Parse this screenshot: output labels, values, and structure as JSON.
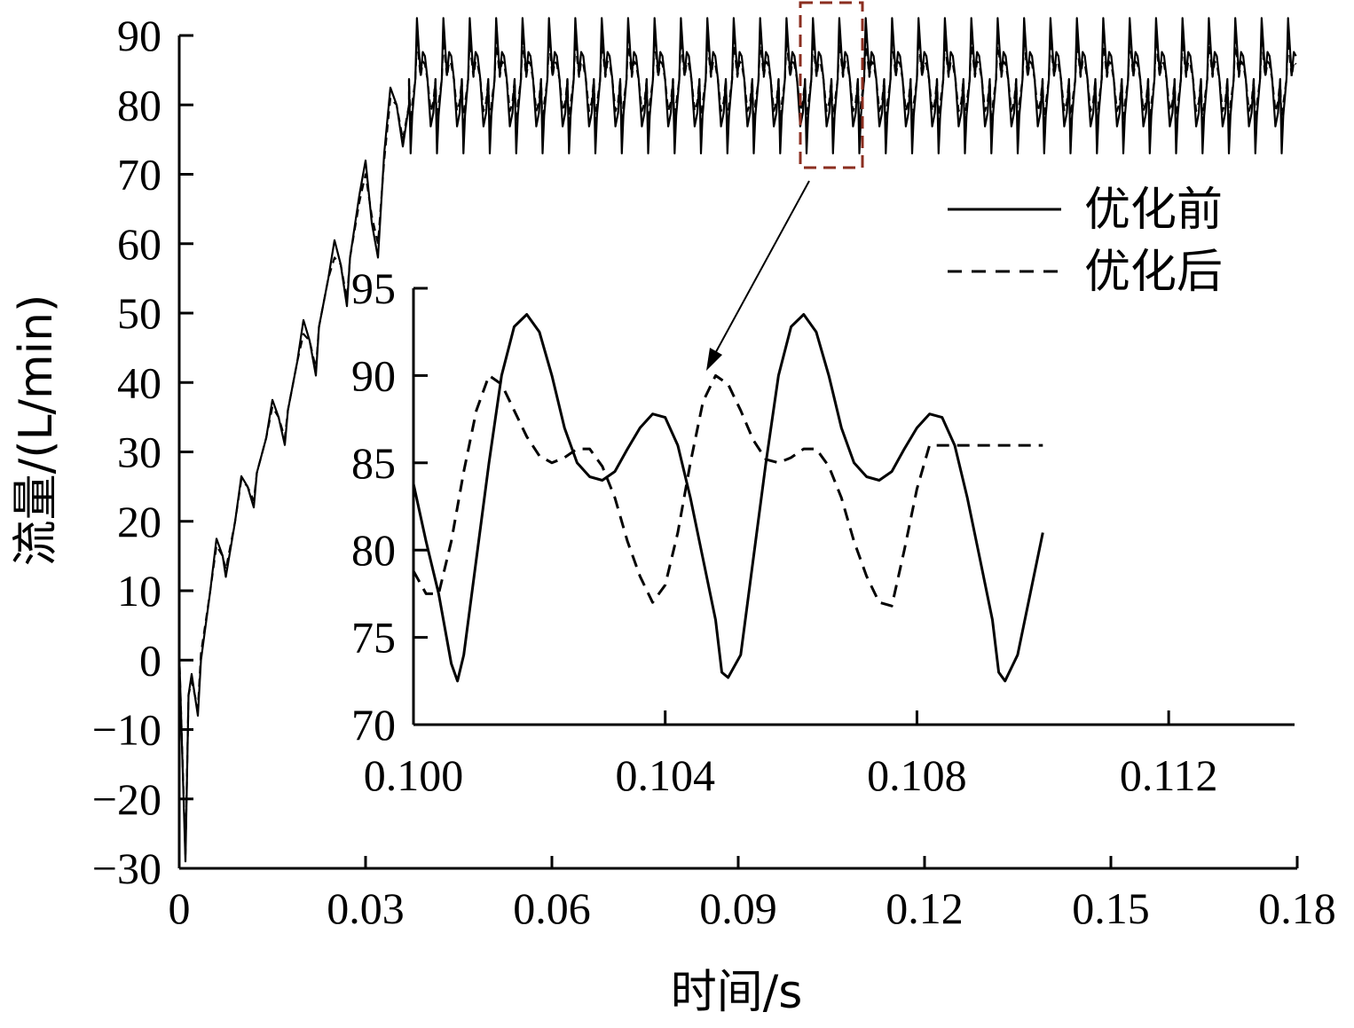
{
  "chart_data": [
    {
      "type": "line",
      "role": "main",
      "xlabel": "时间/s",
      "ylabel": "流量/(L/min)",
      "xlim": [
        0,
        0.18
      ],
      "ylim": [
        -30,
        90
      ],
      "x_ticks": [
        "0",
        "0.03",
        "0.06",
        "0.09",
        "0.12",
        "0.15",
        "0.18"
      ],
      "y_ticks": [
        "90",
        "80",
        "70",
        "60",
        "50",
        "40",
        "30",
        "20",
        "10",
        "0",
        "−10",
        "−20",
        "−30"
      ],
      "x_tick_values": [
        0,
        0.03,
        0.06,
        0.09,
        0.12,
        0.15,
        0.18
      ],
      "y_tick_values": [
        90,
        80,
        70,
        60,
        50,
        40,
        30,
        20,
        10,
        0,
        -10,
        -20,
        -30
      ],
      "grid": false,
      "series": [
        {
          "name": "优化前",
          "style": "solid",
          "color": "#000000",
          "x": [
            0,
            0.001,
            0.0015,
            0.002,
            0.003,
            0.0035,
            0.005,
            0.006,
            0.007,
            0.0075,
            0.009,
            0.01,
            0.011,
            0.012,
            0.0125,
            0.014,
            0.015,
            0.016,
            0.017,
            0.0175,
            0.019,
            0.02,
            0.021,
            0.022,
            0.0225,
            0.024,
            0.025,
            0.026,
            0.027,
            0.0275,
            0.029,
            0.03,
            0.031,
            0.032,
            0.033,
            0.034,
            0.035,
            0.036,
            0.037
          ],
          "values": [
            1,
            -29,
            -5,
            -2,
            -8,
            0,
            10,
            17.5,
            15,
            12,
            20,
            26.5,
            25,
            22,
            27,
            32,
            37.5,
            35,
            31,
            36,
            43,
            49,
            46,
            41,
            48,
            55,
            60.5,
            57,
            51,
            58,
            67,
            72,
            63,
            58,
            73,
            82.5,
            80,
            74,
            80
          ]
        },
        {
          "name": "优化后",
          "style": "dashed",
          "color": "#000000",
          "x": [
            0,
            0.001,
            0.0015,
            0.002,
            0.003,
            0.0035,
            0.005,
            0.006,
            0.007,
            0.0075,
            0.009,
            0.01,
            0.011,
            0.012,
            0.0125,
            0.014,
            0.015,
            0.016,
            0.017,
            0.0175,
            0.019,
            0.02,
            0.021,
            0.022,
            0.0225,
            0.024,
            0.025,
            0.026,
            0.027,
            0.0275,
            0.029,
            0.03,
            0.031,
            0.032,
            0.033,
            0.034,
            0.035,
            0.036,
            0.037
          ],
          "values": [
            1,
            -28,
            -5,
            -3,
            -7,
            1,
            10,
            16.5,
            15,
            13,
            20,
            26,
            25,
            23,
            27,
            32,
            36.5,
            35,
            32,
            36,
            43,
            47,
            46,
            42,
            48,
            55,
            58,
            57,
            52,
            58,
            66,
            70,
            64,
            60,
            72,
            81,
            80,
            75,
            80
          ]
        }
      ],
      "steady_state": {
        "from_x": 0.037,
        "to_x": 0.18,
        "period": 0.00425,
        "before": {
          "peak": 92.5,
          "secondary_peak": 86,
          "trough": 73
        },
        "after": {
          "peak": 89.5,
          "secondary_peak": 85.5,
          "trough": 76.5
        }
      },
      "legend": {
        "entries": [
          {
            "label": "优化前",
            "style": "solid"
          },
          {
            "label": "优化后",
            "style": "dashed"
          }
        ],
        "placement": "top-right"
      },
      "zoom_box": {
        "x_range": [
          0.1,
          0.11
        ],
        "color": "#8b2e1f"
      }
    },
    {
      "type": "line",
      "role": "inset",
      "xlim": [
        0.1,
        0.114
      ],
      "ylim": [
        70,
        95
      ],
      "x_ticks": [
        "0.100",
        "0.104",
        "0.108",
        "0.112"
      ],
      "y_ticks": [
        "95",
        "90",
        "85",
        "80",
        "75",
        "70"
      ],
      "x_tick_values": [
        0.1,
        0.104,
        0.108,
        0.112
      ],
      "y_tick_values": [
        95,
        90,
        85,
        80,
        75,
        70
      ],
      "series": [
        {
          "name": "优化前",
          "style": "solid",
          "x": [
            0.1,
            0.1002,
            0.1004,
            0.1006,
            0.1007,
            0.1008,
            0.101,
            0.1012,
            0.1014,
            0.1016,
            0.1018,
            0.102,
            0.1022,
            0.1024,
            0.1026,
            0.1028,
            0.103,
            0.1032,
            0.1034,
            0.1036,
            0.1038,
            0.104,
            0.1042,
            0.1044,
            0.1046,
            0.1048,
            0.1049,
            0.105,
            0.1052,
            0.1054,
            0.1056,
            0.1058,
            0.106,
            0.1062,
            0.1064,
            0.1066,
            0.1068,
            0.107,
            0.1072,
            0.1074,
            0.1076,
            0.1078,
            0.108,
            0.1082,
            0.1084,
            0.1086,
            0.1088,
            0.109,
            0.1092,
            0.1093,
            0.1094,
            0.1096,
            0.1098,
            0.11
          ],
          "values": [
            83.8,
            80.5,
            77.5,
            73.5,
            72.5,
            74,
            79.5,
            85,
            90,
            92.8,
            93.5,
            92.5,
            90,
            87,
            85,
            84.2,
            84,
            84.5,
            85.8,
            87,
            87.8,
            87.6,
            86,
            83,
            79.5,
            76,
            73,
            72.7,
            74,
            79.5,
            85,
            90,
            92.8,
            93.5,
            92.5,
            90,
            87,
            85,
            84.2,
            84,
            84.5,
            85.8,
            87,
            87.8,
            87.6,
            86,
            83,
            79.5,
            76,
            73,
            72.5,
            74,
            77.5,
            81
          ]
        },
        {
          "name": "优化后",
          "style": "dashed",
          "x": [
            0.1,
            0.1002,
            0.1004,
            0.1006,
            0.1008,
            0.101,
            0.1012,
            0.1014,
            0.1016,
            0.1018,
            0.102,
            0.1022,
            0.1024,
            0.1026,
            0.1028,
            0.103,
            0.1032,
            0.1034,
            0.1036,
            0.1038,
            0.104,
            0.1042,
            0.1044,
            0.1046,
            0.1048,
            0.105,
            0.1052,
            0.1054,
            0.1056,
            0.1058,
            0.106,
            0.1062,
            0.1064,
            0.1066,
            0.1068,
            0.107,
            0.1072,
            0.1074,
            0.1076,
            0.1078,
            0.108,
            0.1082,
            0.1084,
            0.1086,
            0.1088,
            0.109,
            0.1092,
            0.1094,
            0.1096,
            0.1098,
            0.11
          ],
          "values": [
            78.8,
            77.5,
            77.5,
            80.5,
            84.5,
            88,
            90,
            89.5,
            88,
            86.5,
            85.4,
            85,
            85.3,
            85.8,
            85.8,
            84.8,
            83,
            80.5,
            78.5,
            77,
            78,
            81,
            85,
            88.5,
            90,
            89.5,
            88,
            86.3,
            85.2,
            85,
            85.3,
            85.8,
            85.8,
            84.8,
            83,
            80.5,
            78.5,
            77,
            76.8,
            80,
            83.5,
            86,
            86,
            86,
            86,
            86,
            86,
            86,
            86,
            86,
            86
          ]
        }
      ]
    }
  ]
}
